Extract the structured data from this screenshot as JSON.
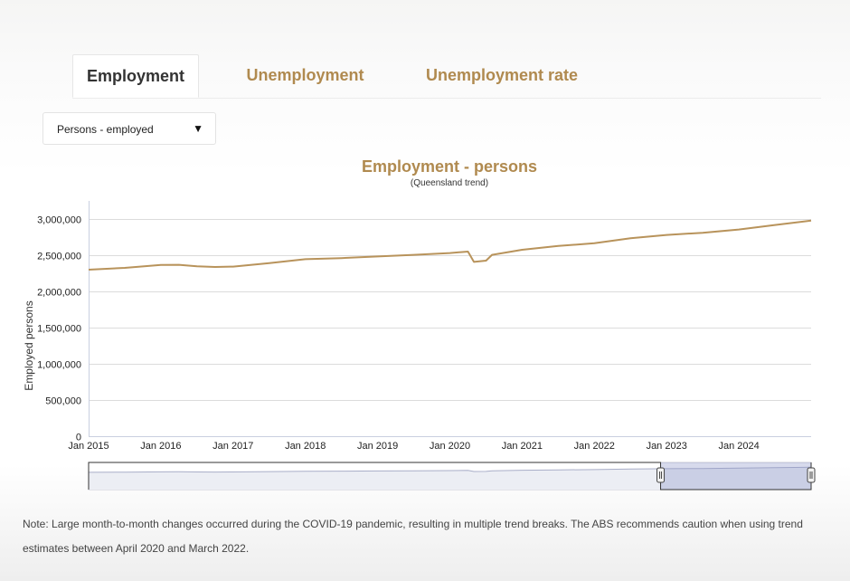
{
  "tabs": [
    {
      "label": "Employment",
      "active": true
    },
    {
      "label": "Unemployment",
      "active": false
    },
    {
      "label": "Unemployment rate",
      "active": false
    }
  ],
  "dropdown": {
    "selected": "Persons - employed",
    "arrow_icon": "triangle-down-icon"
  },
  "chart_data": {
    "type": "line",
    "title": "Employment - persons",
    "subtitle": "(Queensland trend)",
    "ylabel": "Employed persons",
    "xlabel": "",
    "ylim": [
      0,
      3250000
    ],
    "yticks": [
      0,
      500000,
      1000000,
      1500000,
      2000000,
      2500000,
      3000000
    ],
    "ytick_labels": [
      "0",
      "500,000",
      "1,000,000",
      "1,500,000",
      "2,000,000",
      "2,500,000",
      "3,000,000"
    ],
    "xticks": [
      "Jan 2015",
      "Jan 2016",
      "Jan 2017",
      "Jan 2018",
      "Jan 2019",
      "Jan 2020",
      "Jan 2021",
      "Jan 2022",
      "Jan 2023",
      "Jan 2024"
    ],
    "xlim": [
      "2015-01",
      "2025-01"
    ],
    "grid": true,
    "series": [
      {
        "color": "#b8935b",
        "points": [
          [
            "2015-01",
            2300000
          ],
          [
            "2015-07",
            2325000
          ],
          [
            "2016-01",
            2365000
          ],
          [
            "2016-04",
            2368000
          ],
          [
            "2016-07",
            2348000
          ],
          [
            "2016-10",
            2337000
          ],
          [
            "2017-01",
            2343000
          ],
          [
            "2017-07",
            2390000
          ],
          [
            "2018-01",
            2445000
          ],
          [
            "2018-07",
            2460000
          ],
          [
            "2019-01",
            2483000
          ],
          [
            "2019-07",
            2505000
          ],
          [
            "2020-01",
            2530000
          ],
          [
            "2020-04",
            2550000
          ],
          [
            "2020-05",
            2408000
          ],
          [
            "2020-07",
            2425000
          ],
          [
            "2020-08",
            2505000
          ],
          [
            "2021-01",
            2575000
          ],
          [
            "2021-07",
            2628000
          ],
          [
            "2022-01",
            2665000
          ],
          [
            "2022-07",
            2735000
          ],
          [
            "2023-01",
            2780000
          ],
          [
            "2023-07",
            2810000
          ],
          [
            "2024-01",
            2855000
          ],
          [
            "2024-07",
            2918000
          ],
          [
            "2025-01",
            2978000
          ]
        ]
      }
    ],
    "navigator": {
      "selected_range": [
        "2022-12",
        "2025-01"
      ]
    }
  },
  "note": {
    "text": "Note: Large month-to-month changes occurred during the COVID-19 pandemic, resulting in multiple trend breaks. The ABS recommends caution when using trend estimates between April 2020 and March 2022."
  },
  "colors": {
    "accent": "#b08a4f",
    "line": "#b8935b",
    "navigator_fill": "#c7cce0"
  }
}
